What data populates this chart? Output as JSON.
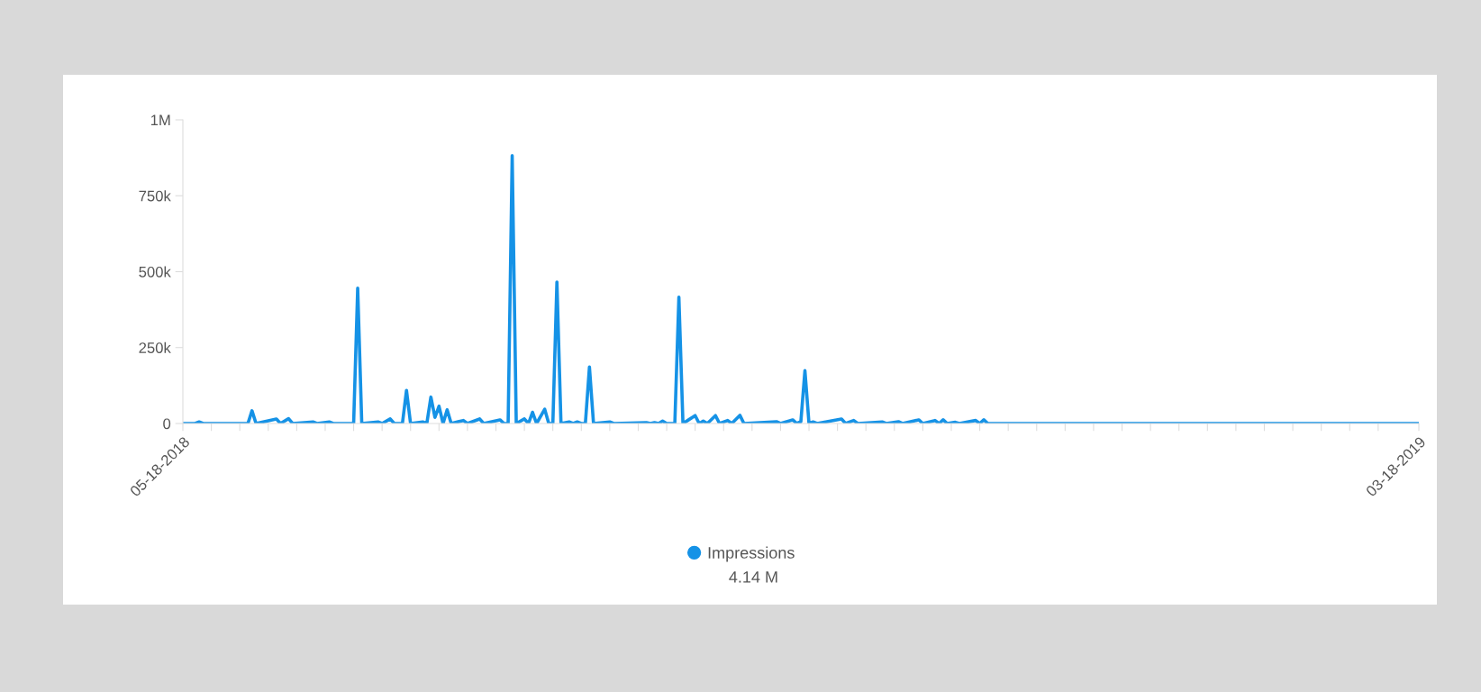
{
  "chart_data": {
    "type": "line",
    "x": [
      "2018-05-18",
      "2018-05-21",
      "2018-05-22",
      "2018-05-23",
      "2018-06-03",
      "2018-06-04",
      "2018-06-05",
      "2018-06-10",
      "2018-06-11",
      "2018-06-13",
      "2018-06-14",
      "2018-06-19",
      "2018-06-20",
      "2018-06-23",
      "2018-06-24",
      "2018-06-29",
      "2018-06-30",
      "2018-07-01",
      "2018-07-05",
      "2018-07-06",
      "2018-07-08",
      "2018-07-09",
      "2018-07-11",
      "2018-07-12",
      "2018-07-13",
      "2018-07-16",
      "2018-07-17",
      "2018-07-18",
      "2018-07-19",
      "2018-07-20",
      "2018-07-21",
      "2018-07-22",
      "2018-07-23",
      "2018-07-26",
      "2018-07-27",
      "2018-07-30",
      "2018-07-31",
      "2018-08-04",
      "2018-08-05",
      "2018-08-06",
      "2018-08-07",
      "2018-08-08",
      "2018-08-10",
      "2018-08-11",
      "2018-08-12",
      "2018-08-13",
      "2018-08-15",
      "2018-08-16",
      "2018-08-17",
      "2018-08-18",
      "2018-08-19",
      "2018-08-21",
      "2018-08-22",
      "2018-08-23",
      "2018-08-24",
      "2018-08-25",
      "2018-08-26",
      "2018-08-27",
      "2018-08-31",
      "2018-09-01",
      "2018-09-09",
      "2018-09-10",
      "2018-09-11",
      "2018-09-12",
      "2018-09-13",
      "2018-09-14",
      "2018-09-16",
      "2018-09-17",
      "2018-09-18",
      "2018-09-21",
      "2018-09-22",
      "2018-09-23",
      "2018-09-24",
      "2018-09-26",
      "2018-09-27",
      "2018-09-29",
      "2018-09-30",
      "2018-10-02",
      "2018-10-03",
      "2018-10-11",
      "2018-10-12",
      "2018-10-15",
      "2018-10-16",
      "2018-10-17",
      "2018-10-18",
      "2018-10-19",
      "2018-10-20",
      "2018-10-21",
      "2018-10-27",
      "2018-10-28",
      "2018-10-30",
      "2018-10-31",
      "2018-11-06",
      "2018-11-07",
      "2018-11-10",
      "2018-11-11",
      "2018-11-15",
      "2018-11-16",
      "2018-11-19",
      "2018-11-20",
      "2018-11-21",
      "2018-11-22",
      "2018-11-24",
      "2018-11-25",
      "2018-11-29",
      "2018-11-30",
      "2018-12-01",
      "2018-12-02",
      "2019-03-18"
    ],
    "series": [
      {
        "name": "Impressions",
        "color": "#1592e6",
        "values": [
          0,
          0,
          5000,
          0,
          0,
          42000,
          0,
          15000,
          0,
          16000,
          0,
          5000,
          0,
          5000,
          0,
          0,
          446000,
          0,
          5000,
          0,
          15000,
          0,
          0,
          109000,
          0,
          5000,
          0,
          87000,
          20000,
          57000,
          0,
          45000,
          0,
          10000,
          0,
          15000,
          0,
          12000,
          0,
          0,
          882000,
          0,
          15000,
          0,
          37000,
          0,
          47000,
          0,
          0,
          466000,
          0,
          5000,
          0,
          5000,
          0,
          0,
          186000,
          0,
          5000,
          0,
          3000,
          0,
          3000,
          0,
          8000,
          0,
          0,
          416000,
          0,
          26000,
          0,
          8000,
          0,
          26000,
          0,
          10000,
          0,
          27000,
          0,
          6000,
          0,
          12000,
          0,
          6000,
          174000,
          0,
          5000,
          0,
          15000,
          0,
          10000,
          0,
          5000,
          0,
          6000,
          0,
          12000,
          0,
          10000,
          0,
          12000,
          0,
          4000,
          0,
          10000,
          0,
          12000,
          0,
          0
        ]
      }
    ],
    "xlim": [
      "2018-05-18",
      "2019-03-18"
    ],
    "xticks": [
      {
        "value": "2018-05-18",
        "label": "05-18-2018"
      },
      {
        "value": "2018-05-25",
        "label": null
      },
      {
        "value": "2018-06-01",
        "label": null
      },
      {
        "value": "2018-06-08",
        "label": null
      },
      {
        "value": "2018-06-15",
        "label": null
      },
      {
        "value": "2018-06-22",
        "label": null
      },
      {
        "value": "2018-06-29",
        "label": null
      },
      {
        "value": "2018-07-06",
        "label": null
      },
      {
        "value": "2018-07-13",
        "label": null
      },
      {
        "value": "2018-07-20",
        "label": null
      },
      {
        "value": "2018-07-27",
        "label": null
      },
      {
        "value": "2018-08-03",
        "label": null
      },
      {
        "value": "2018-08-10",
        "label": null
      },
      {
        "value": "2018-08-17",
        "label": null
      },
      {
        "value": "2018-08-24",
        "label": null
      },
      {
        "value": "2018-08-31",
        "label": null
      },
      {
        "value": "2018-09-07",
        "label": null
      },
      {
        "value": "2018-09-14",
        "label": null
      },
      {
        "value": "2018-09-21",
        "label": null
      },
      {
        "value": "2018-09-28",
        "label": null
      },
      {
        "value": "2018-10-05",
        "label": null
      },
      {
        "value": "2018-10-12",
        "label": null
      },
      {
        "value": "2018-10-19",
        "label": null
      },
      {
        "value": "2018-10-26",
        "label": null
      },
      {
        "value": "2018-11-02",
        "label": null
      },
      {
        "value": "2018-11-09",
        "label": null
      },
      {
        "value": "2018-11-16",
        "label": null
      },
      {
        "value": "2018-11-23",
        "label": null
      },
      {
        "value": "2018-11-30",
        "label": null
      },
      {
        "value": "2018-12-07",
        "label": null
      },
      {
        "value": "2018-12-14",
        "label": null
      },
      {
        "value": "2018-12-21",
        "label": null
      },
      {
        "value": "2018-12-28",
        "label": null
      },
      {
        "value": "2019-01-04",
        "label": null
      },
      {
        "value": "2019-01-11",
        "label": null
      },
      {
        "value": "2019-01-18",
        "label": null
      },
      {
        "value": "2019-01-25",
        "label": null
      },
      {
        "value": "2019-02-01",
        "label": null
      },
      {
        "value": "2019-02-08",
        "label": null
      },
      {
        "value": "2019-02-15",
        "label": null
      },
      {
        "value": "2019-02-22",
        "label": null
      },
      {
        "value": "2019-03-01",
        "label": null
      },
      {
        "value": "2019-03-08",
        "label": null
      },
      {
        "value": "2019-03-18",
        "label": "03-18-2019"
      }
    ],
    "ylim": [
      0,
      1000000
    ],
    "yticks": [
      {
        "value": 0,
        "label": "0"
      },
      {
        "value": 250000,
        "label": "250k"
      },
      {
        "value": 500000,
        "label": "500k"
      },
      {
        "value": 750000,
        "label": "750k"
      },
      {
        "value": 1000000,
        "label": "1M"
      }
    ],
    "grid": false,
    "legend": "bottom",
    "marker": "none",
    "line_style": "solid",
    "annotations": [
      "4.14 M"
    ]
  }
}
